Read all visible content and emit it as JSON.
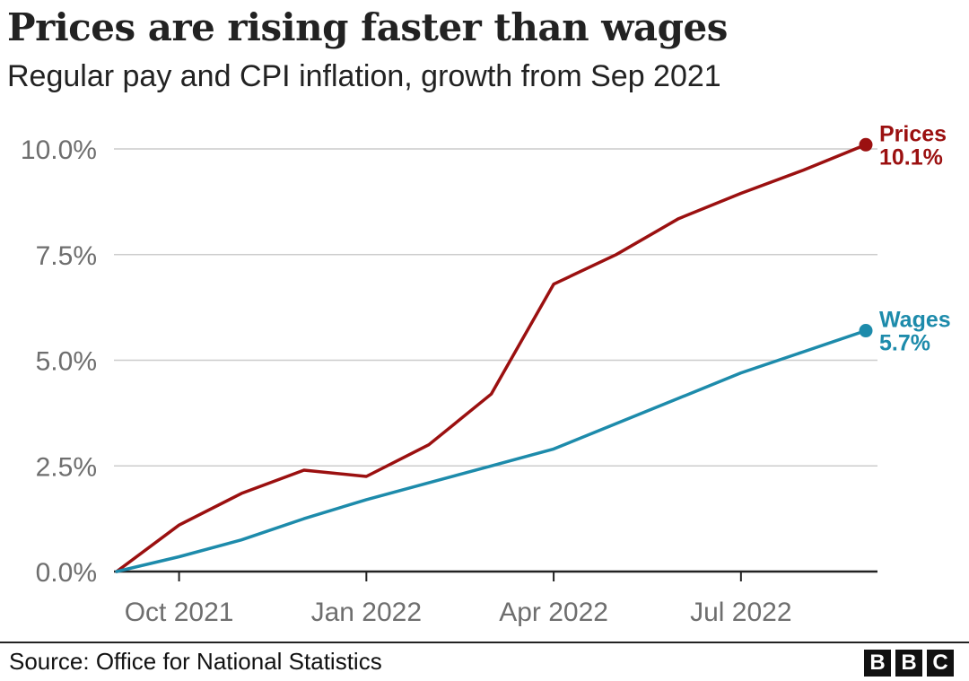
{
  "chart_data": {
    "type": "line",
    "title": "Prices are rising faster than wages",
    "subtitle": "Regular pay and CPI inflation, growth from Sep 2021",
    "x": [
      "Sep 2021",
      "Oct 2021",
      "Nov 2021",
      "Dec 2021",
      "Jan 2022",
      "Feb 2022",
      "Mar 2022",
      "Apr 2022",
      "May 2022",
      "Jun 2022",
      "Jul 2022",
      "Aug 2022",
      "Sep 2022"
    ],
    "x_tick_labels": [
      "Oct 2021",
      "Jan 2022",
      "Apr 2022",
      "Jul 2022"
    ],
    "x_tick_indices": [
      1,
      4,
      7,
      10
    ],
    "y_ticks": [
      0,
      2.5,
      5,
      7.5,
      10
    ],
    "y_tick_labels": [
      "0.0%",
      "2.5%",
      "5.0%",
      "7.5%",
      "10.0%"
    ],
    "ylim": [
      0,
      10.5
    ],
    "grid": true,
    "series": [
      {
        "name": "Prices",
        "end_label": "10.1%",
        "color": "#9b1010",
        "values": [
          0,
          1.1,
          1.85,
          2.4,
          2.25,
          3.0,
          4.2,
          6.8,
          7.5,
          8.35,
          8.95,
          9.5,
          10.1
        ]
      },
      {
        "name": "Wages",
        "end_label": "5.7%",
        "color": "#1d8bab",
        "values": [
          0,
          0.35,
          0.75,
          1.25,
          1.7,
          2.1,
          2.5,
          2.9,
          3.5,
          4.1,
          4.7,
          5.2,
          5.7
        ]
      }
    ]
  },
  "footer": {
    "source": "Source: Office for National Statistics",
    "logo_letters": [
      "B",
      "B",
      "C"
    ]
  },
  "colors": {
    "gridline": "#cccccc",
    "baseline": "#222222",
    "tick_text": "#6e6e6e"
  }
}
